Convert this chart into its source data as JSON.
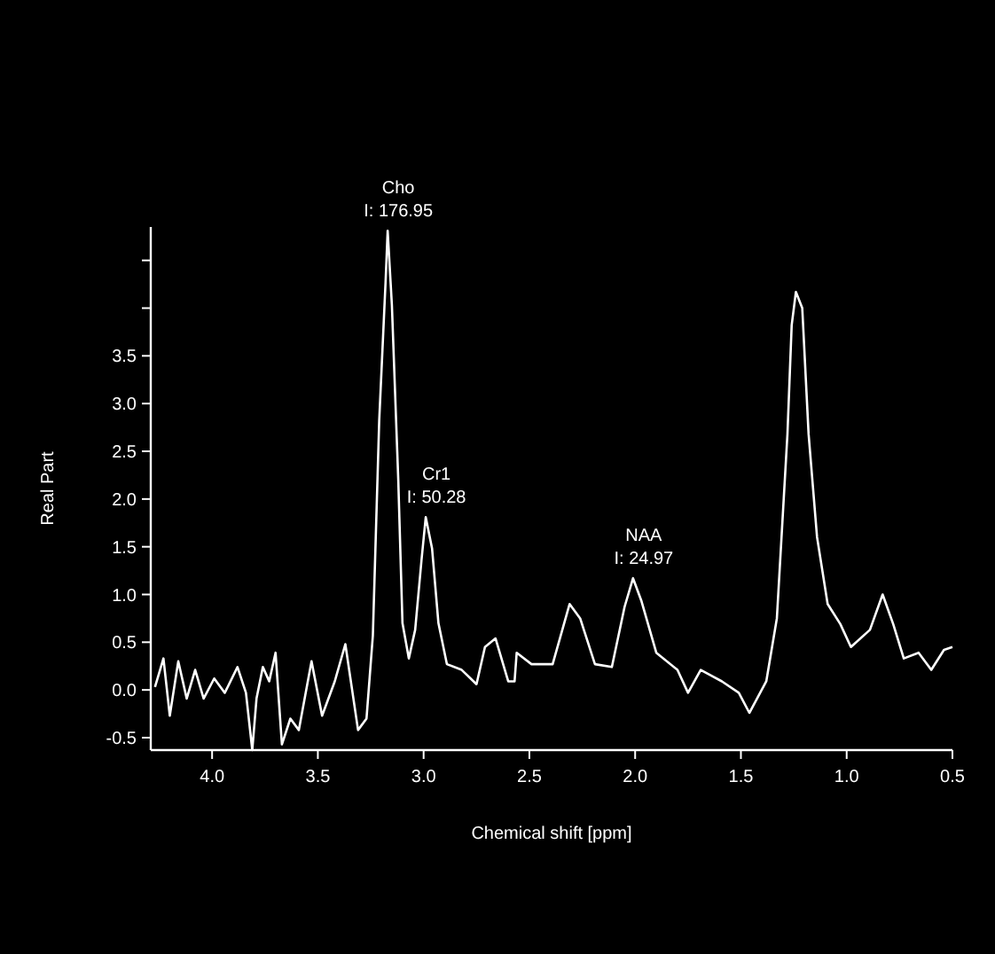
{
  "chart_data": {
    "type": "line",
    "xlabel": "Chemical shift [ppm]",
    "ylabel": "Real Part",
    "xlim": [
      4.29,
      0.5
    ],
    "ylim": [
      -0.63,
      4.85
    ],
    "xticks": [
      {
        "value": 4.0,
        "label": "4.0"
      },
      3.5,
      {
        "value": 3.0,
        "label": "3.0"
      },
      2.5,
      {
        "value": 2.0,
        "label": "2.0"
      },
      1.5,
      {
        "value": 1.0,
        "label": "1.0"
      },
      0.5
    ],
    "yticks": [
      -0.5,
      {
        "value": 0.0,
        "label": "0.0"
      },
      0.5,
      {
        "value": 1.0,
        "label": "1.0"
      },
      1.5,
      {
        "value": 2.0,
        "label": "2.0"
      },
      2.5,
      {
        "value": 3.0,
        "label": "3.0"
      },
      3.5,
      {
        "value": 4.0,
        "label": null
      },
      {
        "value": 4.5,
        "label": null
      }
    ],
    "grid": false,
    "marker": "none",
    "line_style": "solid",
    "annotations": [
      {
        "text": "Cho\nI: 176.95",
        "x": 3.17,
        "y": 4.81
      },
      {
        "text": "Cr1\nI: 50.28",
        "x": 2.99,
        "y": 1.81
      },
      {
        "text": "NAA\nI: 24.97",
        "x": 2.01,
        "y": 1.17
      }
    ],
    "series": [
      {
        "color": "#ffffff",
        "x": [
          4.27,
          4.23,
          4.2,
          4.16,
          4.12,
          4.08,
          4.04,
          3.99,
          3.94,
          3.88,
          3.84,
          3.81,
          3.79,
          3.76,
          3.73,
          3.7,
          3.67,
          3.63,
          3.59,
          3.53,
          3.48,
          3.42,
          3.37,
          3.31,
          3.27,
          3.24,
          3.21,
          3.18,
          3.17,
          3.15,
          3.12,
          3.1,
          3.07,
          3.04,
          3.01,
          2.99,
          2.96,
          2.93,
          2.89,
          2.82,
          2.75,
          2.71,
          2.66,
          2.6,
          2.57,
          2.56,
          2.49,
          2.39,
          2.31,
          2.26,
          2.19,
          2.11,
          2.05,
          2.01,
          1.97,
          1.9,
          1.8,
          1.75,
          1.69,
          1.59,
          1.51,
          1.46,
          1.38,
          1.33,
          1.28,
          1.26,
          1.24,
          1.21,
          1.18,
          1.14,
          1.09,
          1.03,
          0.98,
          0.89,
          0.83,
          0.78,
          0.73,
          0.66,
          0.6,
          0.54,
          0.5
        ],
        "values": [
          0.03,
          0.33,
          -0.27,
          0.3,
          -0.09,
          0.21,
          -0.09,
          0.12,
          -0.03,
          0.24,
          -0.03,
          -0.63,
          -0.09,
          0.24,
          0.09,
          0.39,
          -0.57,
          -0.3,
          -0.42,
          0.3,
          -0.27,
          0.09,
          0.48,
          -0.42,
          -0.3,
          0.57,
          2.82,
          4.27,
          4.81,
          4.03,
          2.21,
          0.7,
          0.33,
          0.63,
          1.36,
          1.81,
          1.48,
          0.7,
          0.27,
          0.21,
          0.06,
          0.45,
          0.54,
          0.09,
          0.09,
          0.39,
          0.27,
          0.27,
          0.9,
          0.75,
          0.27,
          0.24,
          0.87,
          1.17,
          0.93,
          0.39,
          0.21,
          -0.03,
          0.21,
          0.09,
          -0.03,
          -0.24,
          0.09,
          0.75,
          2.68,
          3.82,
          4.17,
          4.0,
          2.68,
          1.6,
          0.9,
          0.69,
          0.45,
          0.63,
          1.0,
          0.69,
          0.33,
          0.39,
          0.21,
          0.42,
          0.45
        ]
      }
    ]
  }
}
